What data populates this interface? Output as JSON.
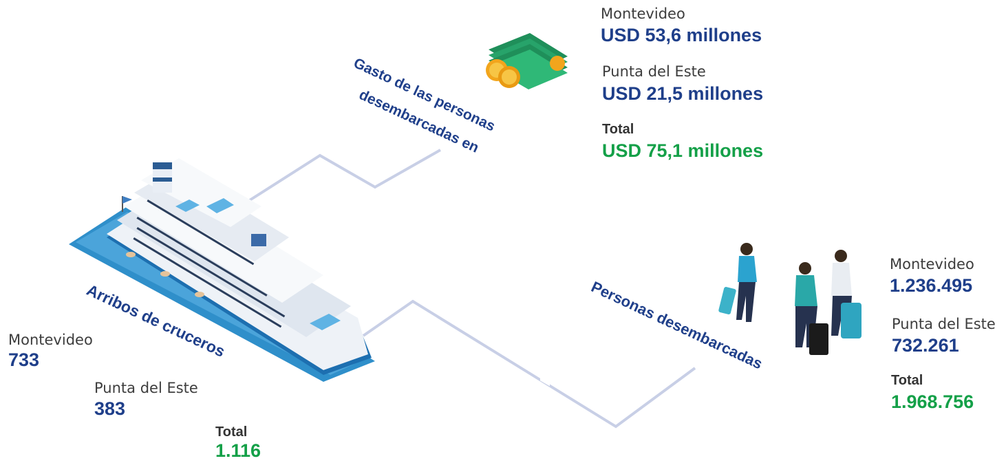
{
  "colors": {
    "blue": "#1f3f8a",
    "green": "#14a048",
    "line": "#c5cde6",
    "sea": "#2f8fca"
  },
  "cruises": {
    "title": "Arribos de cruceros",
    "montevideo_label": "Montevideo",
    "montevideo_value": "733",
    "punta_label": "Punta del Este",
    "punta_value": "383",
    "total_label": "Total",
    "total_value": "1.116"
  },
  "spending": {
    "title_line1": "Gasto de las personas",
    "title_line2": "desembarcadas en",
    "montevideo_label": "Montevideo",
    "montevideo_value": "USD 53,6 millones",
    "punta_label": "Punta del Este",
    "punta_value": "USD 21,5 millones",
    "total_label": "Total",
    "total_value": "USD 75,1 millones"
  },
  "passengers": {
    "title": "Personas desembarcadas",
    "montevideo_label": "Montevideo",
    "montevideo_value": "1.236.495",
    "punta_label": "Punta del Este",
    "punta_value": "732.261",
    "total_label": "Total",
    "total_value": "1.968.756"
  },
  "icons": {
    "ship": "cruise-ship-icon",
    "money": "money-stack-icon",
    "travelers": "travelers-icon"
  }
}
